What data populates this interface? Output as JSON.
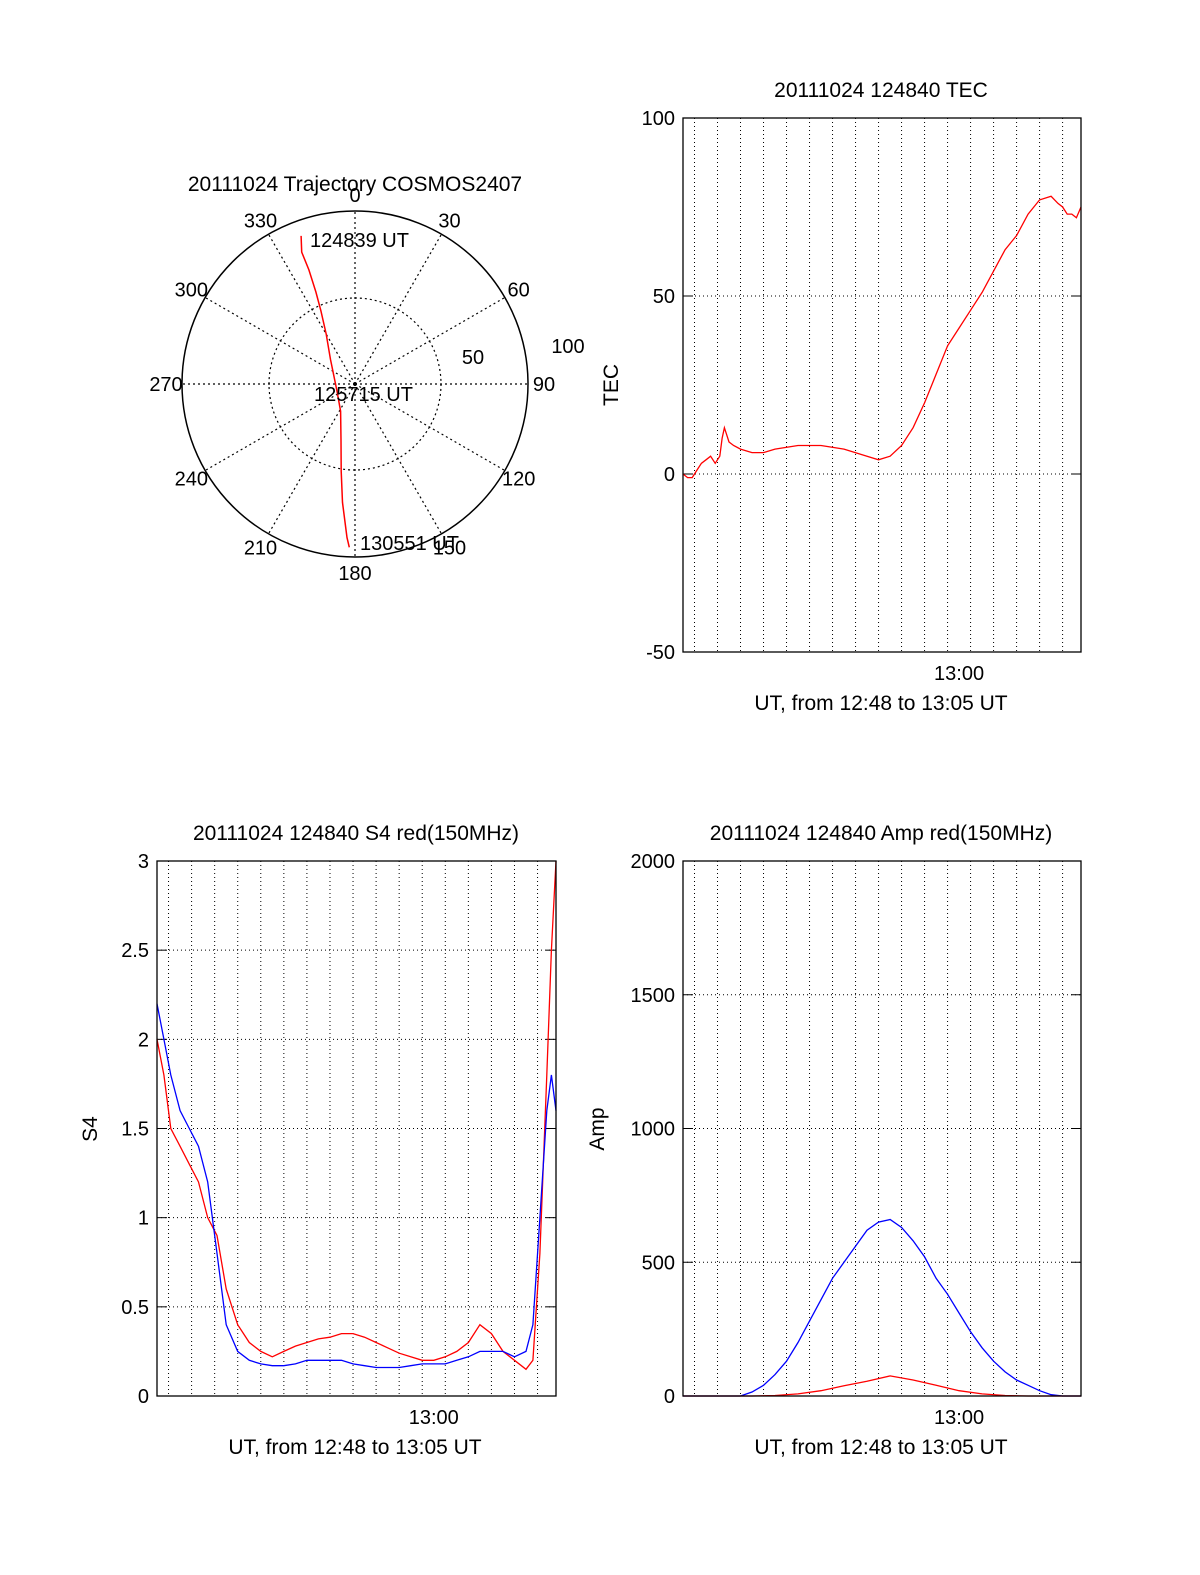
{
  "chart_data": [
    {
      "type": "polar",
      "title": "20111024 Trajectory COSMOS2407",
      "azimuth_labels": [
        "0",
        "30",
        "60",
        "90",
        "120",
        "150",
        "180",
        "210",
        "240",
        "270",
        "300",
        "330"
      ],
      "radial_labels": [
        "50",
        "100"
      ],
      "annotations": [
        "124839 UT",
        "125715 UT",
        "130551 UT"
      ],
      "series": [
        {
          "color": "#ff0000",
          "points": [
            {
              "az": 340,
              "zd": 82
            },
            {
              "az": 338,
              "zd": 74
            },
            {
              "az": 338,
              "zd": 64
            },
            {
              "az": 337,
              "zd": 52
            },
            {
              "az": 335,
              "zd": 42
            },
            {
              "az": 330,
              "zd": 30
            },
            {
              "az": 315,
              "zd": 18
            },
            {
              "az": 250,
              "zd": 10
            },
            {
              "az": 208,
              "zd": 16
            },
            {
              "az": 194,
              "zd": 30
            },
            {
              "az": 189,
              "zd": 46
            },
            {
              "az": 186,
              "zd": 62
            },
            {
              "az": 183,
              "zd": 80
            },
            {
              "az": 182,
              "zd": 85
            }
          ]
        }
      ]
    },
    {
      "type": "line",
      "title": "20111024 124840 TEC",
      "xlabel": "UT, from 12:48 to 13:05 UT",
      "ylabel": "TEC",
      "xlim": [
        0,
        17.3
      ],
      "ylim": [
        -50,
        100
      ],
      "yticks": [
        -50,
        0,
        50,
        100
      ],
      "xticks": [
        {
          "value": 12,
          "label": "13:00"
        }
      ],
      "grid": true,
      "series": [
        {
          "color": "#ff0000",
          "x": [
            0.0,
            0.2,
            0.4,
            0.6,
            0.8,
            1.0,
            1.2,
            1.4,
            1.6,
            1.7,
            1.8,
            1.9,
            2.0,
            2.2,
            2.5,
            3.0,
            3.5,
            4.0,
            5.0,
            6.0,
            7.0,
            8.0,
            8.5,
            9.0,
            9.5,
            10.0,
            10.5,
            11.0,
            11.5,
            12.0,
            12.5,
            13.0,
            13.5,
            14.0,
            14.5,
            15.0,
            15.5,
            16.0,
            16.3,
            16.5,
            16.7,
            16.9,
            17.1,
            17.3
          ],
          "y": [
            0,
            -1,
            -1,
            1,
            3,
            4,
            5,
            3,
            5,
            10,
            13,
            11,
            9,
            8,
            7,
            6,
            6,
            7,
            8,
            8,
            7,
            5,
            4,
            5,
            8,
            13,
            20,
            28,
            36,
            41,
            46,
            51,
            57,
            63,
            67,
            73,
            77,
            78,
            76,
            75,
            73,
            73,
            72,
            75
          ]
        }
      ]
    },
    {
      "type": "line",
      "title": "20111024 124840 S4 red(150MHz)",
      "xlabel": "UT, from 12:48 to 13:05 UT",
      "ylabel": "S4",
      "xlim": [
        0,
        17.3
      ],
      "ylim": [
        0,
        3
      ],
      "yticks": [
        0,
        0.5,
        1,
        1.5,
        2,
        2.5,
        3
      ],
      "xticks": [
        {
          "value": 12,
          "label": "13:00"
        }
      ],
      "grid": true,
      "series": [
        {
          "color": "#ff0000",
          "x": [
            0.0,
            0.3,
            0.6,
            1.0,
            1.4,
            1.8,
            2.2,
            2.6,
            3.0,
            3.5,
            4.0,
            4.5,
            5.0,
            5.5,
            6.0,
            6.5,
            7.0,
            7.5,
            8.0,
            8.5,
            9.0,
            9.5,
            10.0,
            10.5,
            11.0,
            11.5,
            12.0,
            12.5,
            13.0,
            13.5,
            14.0,
            14.5,
            15.0,
            15.5,
            16.0,
            16.3,
            16.6,
            16.9,
            17.1,
            17.3
          ],
          "y": [
            2.0,
            1.8,
            1.5,
            1.4,
            1.3,
            1.2,
            1.0,
            0.9,
            0.6,
            0.4,
            0.3,
            0.25,
            0.22,
            0.25,
            0.28,
            0.3,
            0.32,
            0.33,
            0.35,
            0.35,
            0.33,
            0.3,
            0.27,
            0.24,
            0.22,
            0.2,
            0.2,
            0.22,
            0.25,
            0.3,
            0.4,
            0.35,
            0.25,
            0.2,
            0.15,
            0.2,
            0.8,
            1.8,
            2.5,
            3.0
          ]
        },
        {
          "color": "#0000ff",
          "x": [
            0.0,
            0.3,
            0.6,
            1.0,
            1.4,
            1.8,
            2.2,
            2.6,
            3.0,
            3.5,
            4.0,
            4.5,
            5.0,
            5.5,
            6.0,
            6.5,
            7.0,
            7.5,
            8.0,
            8.5,
            9.0,
            9.5,
            10.0,
            10.5,
            11.0,
            11.5,
            12.0,
            12.5,
            13.0,
            13.5,
            14.0,
            14.5,
            15.0,
            15.5,
            16.0,
            16.3,
            16.6,
            16.9,
            17.1,
            17.3
          ],
          "y": [
            2.2,
            2.0,
            1.8,
            1.6,
            1.5,
            1.4,
            1.2,
            0.8,
            0.4,
            0.25,
            0.2,
            0.18,
            0.17,
            0.17,
            0.18,
            0.2,
            0.2,
            0.2,
            0.2,
            0.18,
            0.17,
            0.16,
            0.16,
            0.16,
            0.17,
            0.18,
            0.18,
            0.18,
            0.2,
            0.22,
            0.25,
            0.25,
            0.25,
            0.22,
            0.25,
            0.4,
            1.0,
            1.6,
            1.8,
            1.6
          ]
        }
      ]
    },
    {
      "type": "line",
      "title": "20111024 124840 Amp red(150MHz)",
      "xlabel": "UT, from 12:48 to 13:05 UT",
      "ylabel": "Amp",
      "xlim": [
        0,
        17.3
      ],
      "ylim": [
        0,
        2000
      ],
      "yticks": [
        0,
        500,
        1000,
        1500,
        2000
      ],
      "xticks": [
        {
          "value": 12,
          "label": "13:00"
        }
      ],
      "grid": true,
      "series": [
        {
          "color": "#0000ff",
          "x": [
            0.0,
            1.0,
            2.0,
            2.5,
            3.0,
            3.5,
            4.0,
            4.5,
            5.0,
            5.5,
            6.0,
            6.5,
            7.0,
            7.5,
            8.0,
            8.5,
            9.0,
            9.5,
            10.0,
            10.5,
            11.0,
            11.5,
            12.0,
            12.5,
            13.0,
            13.5,
            14.0,
            14.5,
            15.0,
            15.5,
            16.0,
            16.5,
            17.3
          ],
          "y": [
            0,
            0,
            0,
            0,
            15,
            40,
            80,
            130,
            200,
            280,
            360,
            440,
            500,
            560,
            620,
            650,
            660,
            630,
            580,
            520,
            440,
            380,
            310,
            240,
            180,
            130,
            90,
            60,
            40,
            20,
            5,
            0,
            0
          ]
        },
        {
          "color": "#ff0000",
          "x": [
            0.0,
            3.0,
            4.0,
            5.0,
            6.0,
            7.0,
            8.0,
            9.0,
            10.0,
            11.0,
            12.0,
            13.0,
            14.0,
            15.0,
            17.3
          ],
          "y": [
            0,
            0,
            2,
            8,
            20,
            38,
            55,
            75,
            60,
            40,
            20,
            8,
            2,
            0,
            0
          ]
        }
      ]
    }
  ]
}
